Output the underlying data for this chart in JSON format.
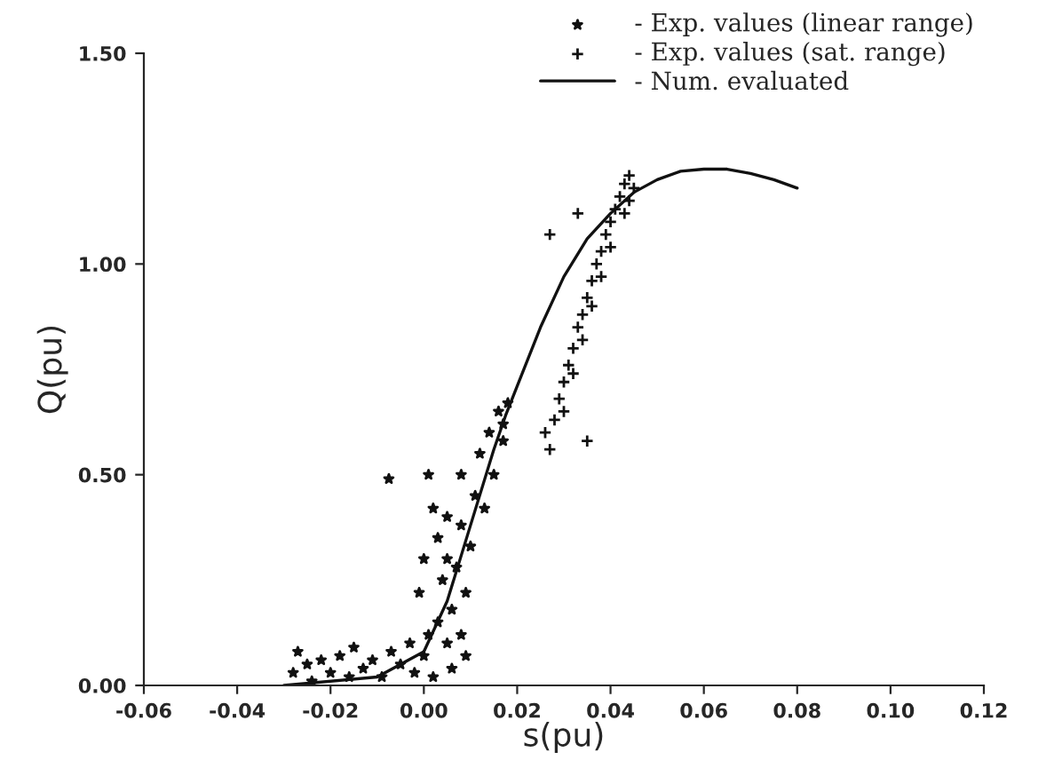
{
  "chart_data": {
    "type": "scatter",
    "xlabel": "s(pu)",
    "ylabel": "Q(pu)",
    "xlim": [
      -0.06,
      0.12
    ],
    "ylim": [
      0,
      1.5
    ],
    "xticks": [
      {
        "value": -0.06,
        "label": "-0.06"
      },
      {
        "value": -0.04,
        "label": "-0.04"
      },
      {
        "value": -0.02,
        "label": "-0.02"
      },
      {
        "value": 0.0,
        "label": "0.00"
      },
      {
        "value": 0.02,
        "label": "0.02"
      },
      {
        "value": 0.04,
        "label": "0.04"
      },
      {
        "value": 0.06,
        "label": "0.06"
      },
      {
        "value": 0.08,
        "label": "0.08"
      },
      {
        "value": 0.1,
        "label": "0.10"
      },
      {
        "value": 0.12,
        "label": "0.12"
      }
    ],
    "yticks": [
      {
        "value": 0,
        "label": "0.00"
      },
      {
        "value": 0.5,
        "label": "0.50"
      },
      {
        "value": 1.0,
        "label": "1.00"
      },
      {
        "value": 1.5,
        "label": "1.50"
      }
    ],
    "grid": false,
    "legend": "top right",
    "series": [
      {
        "name": "- Exp. values (linear range)",
        "marker": "star",
        "color": "#111111",
        "x": [
          -0.028,
          -0.027,
          -0.025,
          -0.024,
          -0.022,
          -0.02,
          -0.018,
          -0.016,
          -0.015,
          -0.013,
          -0.011,
          -0.009,
          -0.007,
          -0.005,
          -0.003,
          -0.002,
          0.0,
          0.001,
          0.002,
          0.003,
          0.005,
          0.006,
          0.008,
          0.009,
          -0.001,
          0.0,
          0.001,
          0.002,
          0.003,
          0.004,
          0.005,
          0.005,
          0.006,
          0.007,
          0.008,
          0.008,
          0.009,
          0.01,
          0.011,
          0.012,
          0.013,
          0.014,
          0.015,
          0.016,
          0.017,
          0.018,
          0.017,
          -0.0075
        ],
        "values": [
          0.03,
          0.08,
          0.05,
          0.01,
          0.06,
          0.03,
          0.07,
          0.02,
          0.09,
          0.04,
          0.06,
          0.02,
          0.08,
          0.05,
          0.1,
          0.03,
          0.07,
          0.12,
          0.02,
          0.15,
          0.1,
          0.04,
          0.12,
          0.07,
          0.22,
          0.3,
          0.5,
          0.42,
          0.35,
          0.25,
          0.3,
          0.4,
          0.18,
          0.28,
          0.38,
          0.5,
          0.22,
          0.33,
          0.45,
          0.55,
          0.42,
          0.6,
          0.5,
          0.65,
          0.58,
          0.67,
          0.62,
          0.49
        ]
      },
      {
        "name": "- Exp. values (sat. range)",
        "marker": "cross",
        "color": "#111111",
        "x": [
          0.026,
          0.027,
          0.028,
          0.029,
          0.03,
          0.03,
          0.031,
          0.032,
          0.032,
          0.033,
          0.034,
          0.034,
          0.035,
          0.036,
          0.036,
          0.037,
          0.038,
          0.038,
          0.039,
          0.04,
          0.04,
          0.041,
          0.042,
          0.043,
          0.043,
          0.044,
          0.044,
          0.045,
          0.035,
          0.027,
          0.033
        ],
        "values": [
          0.6,
          0.56,
          0.63,
          0.68,
          0.72,
          0.65,
          0.76,
          0.8,
          0.74,
          0.85,
          0.88,
          0.82,
          0.92,
          0.96,
          0.9,
          1.0,
          1.03,
          0.97,
          1.07,
          1.1,
          1.04,
          1.13,
          1.16,
          1.19,
          1.12,
          1.21,
          1.15,
          1.18,
          0.58,
          1.07,
          1.12
        ]
      },
      {
        "name": "- Num. evaluated",
        "type": "line",
        "marker": "none",
        "line_style": "solid",
        "color": "#111111",
        "x": [
          -0.03,
          -0.01,
          0.0,
          0.005,
          0.01,
          0.015,
          0.0175,
          0.02,
          0.025,
          0.03,
          0.035,
          0.04,
          0.045,
          0.05,
          0.055,
          0.06,
          0.065,
          0.07,
          0.075,
          0.08
        ],
        "values": [
          0.0,
          0.02,
          0.08,
          0.2,
          0.38,
          0.56,
          0.64,
          0.71,
          0.85,
          0.97,
          1.06,
          1.12,
          1.17,
          1.2,
          1.22,
          1.225,
          1.225,
          1.215,
          1.2,
          1.18
        ]
      }
    ]
  }
}
